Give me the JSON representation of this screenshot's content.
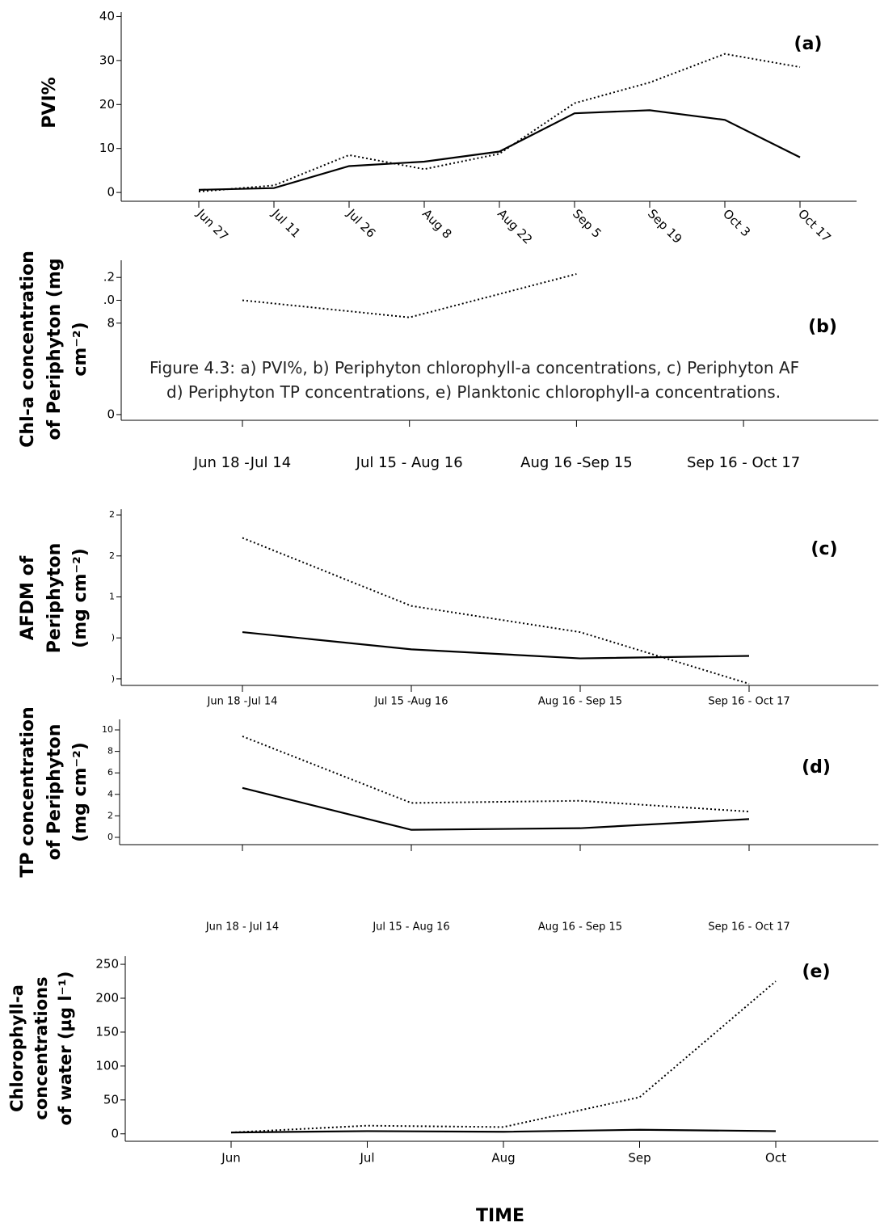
{
  "caption": [
    "Figure 4.3: a) PVI%, b) Periphyton chlorophyll-a concentrations, c) Periphyton AF",
    "d) Periphyton TP concentrations, e) Planktonic chlorophyll-a concentrations."
  ],
  "chart_data": [
    {
      "type": "line",
      "annotation": "(a)",
      "ylabel": [
        "PVI%"
      ],
      "categories": [
        "Jun 27",
        "Jul 11",
        "Jul 26",
        "Aug 8",
        "Aug 22",
        "Sep 5",
        "Sep 19",
        "Oct 3",
        "Oct 17"
      ],
      "series": [
        {
          "color": "#000000",
          "style": "solid",
          "values": [
            0.6,
            1,
            6,
            7,
            9.3,
            18,
            18.7,
            16.5,
            8
          ]
        },
        {
          "color": "#000000",
          "style": "dotted",
          "values": [
            0.2,
            1.6,
            8.5,
            5.3,
            8.8,
            20.3,
            25,
            31.5,
            28.5
          ]
        }
      ],
      "ylim": [
        -2,
        41
      ],
      "yticks": [
        0,
        10,
        20,
        30,
        40
      ]
    },
    {
      "type": "line",
      "annotation": "(b)",
      "ylabel": [
        "Chl-a concentration",
        "of Periphyton (mg",
        "cm⁻²)"
      ],
      "categories": [
        "Jun 18 -Jul 14",
        "Jul 15 - Aug 16",
        "Aug 16 -Sep 15",
        "Sep 16 - Oct 17"
      ],
      "series": [
        {
          "color": "#000000",
          "style": "dotted",
          "values": [
            1.0,
            0.85,
            1.23,
            null
          ]
        }
      ],
      "ylim": [
        -0.05,
        1.35
      ],
      "yticks": [
        {
          "value": 1.2,
          "label": ".2"
        },
        {
          "value": 1.0,
          "label": ".0"
        },
        {
          "value": 0.8,
          "label": "8"
        },
        0
      ]
    },
    {
      "type": "line",
      "annotation": "(c)",
      "ylabel": [
        "AFDM of",
        "Periphyton",
        "(mg cm⁻²)"
      ],
      "categories": [
        "Jun 18 -Jul 14",
        "Jul 15 -Aug 16",
        "Aug 16 - Sep 15",
        "Sep 16 - Oct 17"
      ],
      "series": [
        {
          "color": "#000000",
          "style": "solid",
          "values": [
            1.07,
            0.86,
            0.75,
            0.78
          ]
        },
        {
          "color": "#000000",
          "style": "dotted",
          "values": [
            2.22,
            1.39,
            1.07,
            0.44
          ]
        }
      ],
      "ylim": [
        0.42,
        2.57
      ],
      "yticks": [
        {
          "value": 2.5,
          "label": "2"
        },
        {
          "value": 2.0,
          "label": "2"
        },
        {
          "value": 1.5,
          "label": "1"
        },
        {
          "value": 1.0,
          "label": ")"
        },
        {
          "value": 0.5,
          "label": ")"
        }
      ]
    },
    {
      "type": "line",
      "annotation": "(d)",
      "ylabel": [
        "TP concentration",
        "of Periphyton",
        "(mg cm⁻²)"
      ],
      "categories": [
        "Jun 18 - Jul 14",
        "Jul 15 - Aug 16",
        "Aug 16 - Sep 15",
        "Sep 16 - Oct 17"
      ],
      "series": [
        {
          "color": "#000000",
          "style": "solid",
          "values": [
            4.6,
            0.7,
            0.85,
            1.7
          ]
        },
        {
          "color": "#000000",
          "style": "dotted",
          "values": [
            9.4,
            3.2,
            3.4,
            2.4
          ]
        }
      ],
      "ylim": [
        -0.68,
        10.98
      ],
      "yticks": [
        0,
        2,
        4,
        6,
        8,
        10
      ]
    },
    {
      "type": "line",
      "annotation": "(e)",
      "ylabel": [
        "Chlorophyll-a",
        "concentrations",
        "of water (µg l⁻¹)"
      ],
      "xlabel": "TIME",
      "categories": [
        "Jun",
        "Jul",
        "Aug",
        "Sep",
        "Oct"
      ],
      "series": [
        {
          "color": "#000000",
          "style": "solid",
          "values": [
            2,
            4,
            3,
            6,
            4
          ]
        },
        {
          "color": "#000000",
          "style": "dotted",
          "values": [
            2,
            12,
            10,
            54,
            225
          ]
        }
      ],
      "ylim": [
        -11,
        262
      ],
      "yticks": [
        0,
        50,
        100,
        150,
        200,
        250
      ]
    }
  ]
}
